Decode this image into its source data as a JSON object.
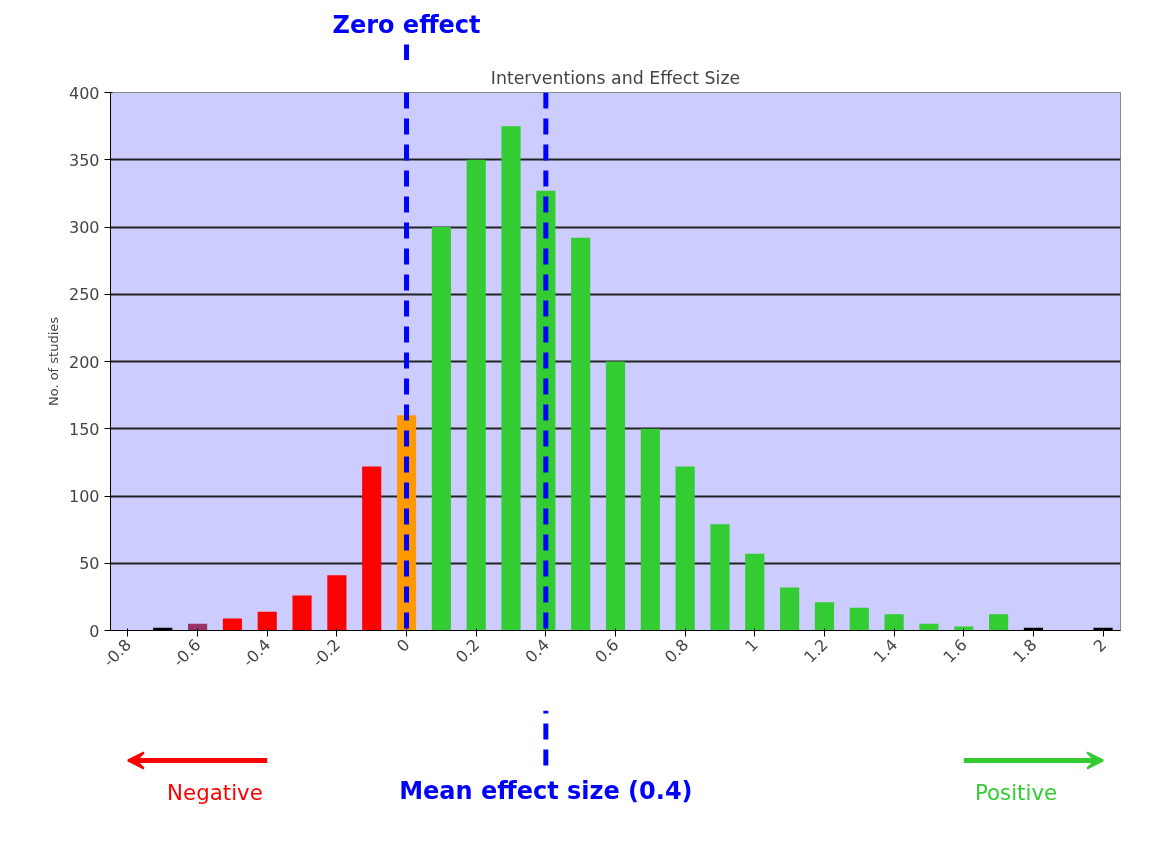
{
  "chart_data": {
    "type": "bar",
    "title": "Interventions and Effect Size",
    "ylabel": "No. of studies",
    "categories": [
      "-0.8",
      null,
      "-0.6",
      null,
      "-0.4",
      null,
      "-0.2",
      null,
      "0",
      null,
      "0.2",
      null,
      "0.4",
      null,
      "0.6",
      null,
      "0.8",
      null,
      "1",
      null,
      "1.2",
      null,
      "1.4",
      null,
      "1.6",
      null,
      "1.8",
      null,
      "2"
    ],
    "values": [
      0,
      2,
      5,
      9,
      14,
      26,
      41,
      122,
      160,
      300,
      350,
      375,
      327,
      292,
      200,
      150,
      122,
      79,
      57,
      32,
      21,
      17,
      12,
      5,
      3,
      12,
      2,
      0,
      2
    ],
    "colors": [
      "#000000",
      "#000000",
      "#993366",
      "#ff0000",
      "#ff0000",
      "#ff0000",
      "#ff0000",
      "#ff0000",
      "#ff9900",
      "#33cc33",
      "#33cc33",
      "#33cc33",
      "#33cc33",
      "#33cc33",
      "#33cc33",
      "#33cc33",
      "#33cc33",
      "#33cc33",
      "#33cc33",
      "#33cc33",
      "#33cc33",
      "#33cc33",
      "#33cc33",
      "#33cc33",
      "#33cc33",
      "#33cc33",
      "#000000",
      "#000000",
      "#000000"
    ],
    "ylim": [
      0,
      400
    ],
    "yticks": [
      0,
      50,
      100,
      150,
      200,
      250,
      300,
      350,
      400
    ],
    "grid": "y",
    "ref_lines": [
      {
        "axis": "x",
        "value": "0",
        "label": "Zero effect",
        "color": "#0000ff",
        "line_style": "dashed"
      },
      {
        "axis": "x",
        "value": "0.4",
        "label": "Mean effect size (0.4)",
        "color": "#0000ff",
        "line_style": "dashed"
      }
    ],
    "annotations": [
      "Negative",
      "Positive"
    ]
  }
}
